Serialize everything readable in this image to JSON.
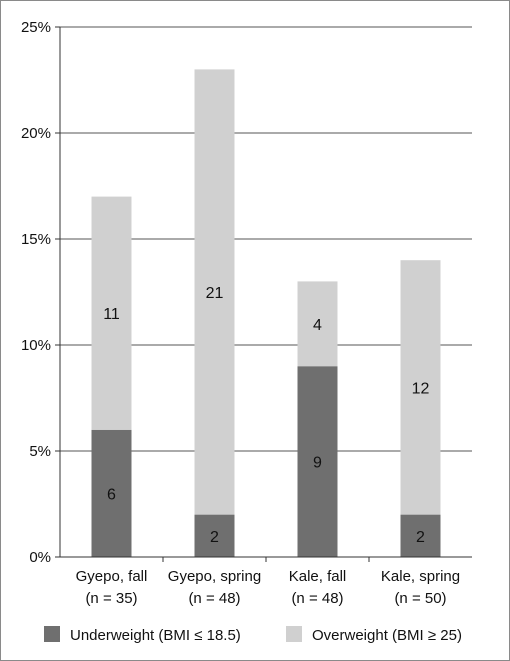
{
  "chart_data": {
    "type": "bar",
    "stacked": true,
    "categories": [
      [
        "Gyepo, fall",
        "(n = 35)"
      ],
      [
        "Gyepo, spring",
        "(n = 48)"
      ],
      [
        "Kale, fall",
        "(n = 48)"
      ],
      [
        "Kale, spring",
        "(n = 50)"
      ]
    ],
    "series": [
      {
        "name": "Underweight (BMI ≤ 18.5)",
        "values": [
          6,
          2,
          9,
          2
        ],
        "labels": [
          "6",
          "2",
          "9",
          "2"
        ],
        "color": "#6f6f6f"
      },
      {
        "name": "Overweight (BMI ≥ 25)",
        "values": [
          11,
          21,
          4,
          12
        ],
        "labels": [
          "11",
          "21",
          "4",
          "12"
        ],
        "color": "#d0d0d0"
      }
    ],
    "yticks": [
      0,
      5,
      10,
      15,
      20,
      25
    ],
    "ytick_labels": [
      "0%",
      "5%",
      "10%",
      "15%",
      "20%",
      "25%"
    ],
    "ylim": [
      0,
      25
    ],
    "grid": true,
    "legend_position": "bottom"
  }
}
